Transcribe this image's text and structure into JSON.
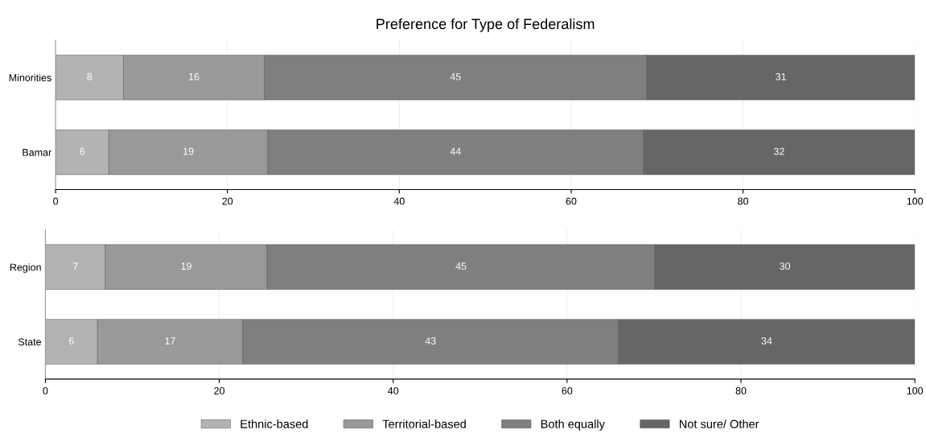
{
  "chart_data": [
    {
      "type": "bar",
      "title": "Preference for Type of Federalism",
      "orientation": "horizontal",
      "stacked": true,
      "categories": [
        "Minorities",
        "Bamar"
      ],
      "xlim": [
        0,
        100
      ],
      "xticks": [
        0,
        20,
        40,
        60,
        80,
        100
      ],
      "grid": "x",
      "legend": false,
      "series": [
        {
          "color": "#b3b3b3",
          "values": [
            7.9,
            6.2
          ],
          "value_labels": [
            "8",
            "6"
          ]
        },
        {
          "color": "#999999",
          "values": [
            16.4,
            18.5
          ],
          "value_labels": [
            "16",
            "19"
          ]
        },
        {
          "color": "#7f7f7f",
          "values": [
            44.5,
            43.7
          ],
          "value_labels": [
            "45",
            "44"
          ]
        },
        {
          "color": "#666666",
          "values": [
            31.2,
            31.6
          ],
          "value_labels": [
            "31",
            "32"
          ]
        }
      ]
    },
    {
      "type": "bar",
      "orientation": "horizontal",
      "stacked": true,
      "categories": [
        "Region",
        "State"
      ],
      "xlim": [
        0,
        100
      ],
      "xticks": [
        0,
        20,
        40,
        60,
        80,
        100
      ],
      "grid": "x",
      "legend": "bottom",
      "series": [
        {
          "name": "Ethnic-based",
          "color": "#b3b3b3",
          "values": [
            6.9,
            6.0
          ],
          "value_labels": [
            "7",
            "6"
          ]
        },
        {
          "name": "Territorial-based",
          "color": "#999999",
          "values": [
            18.6,
            16.7
          ],
          "value_labels": [
            "19",
            "17"
          ]
        },
        {
          "name": "Both equally",
          "color": "#7f7f7f",
          "values": [
            44.6,
            43.2
          ],
          "value_labels": [
            "45",
            "43"
          ]
        },
        {
          "name": "Not sure/ Other",
          "color": "#666666",
          "values": [
            29.9,
            34.1
          ],
          "value_labels": [
            "30",
            "34"
          ]
        }
      ]
    }
  ]
}
